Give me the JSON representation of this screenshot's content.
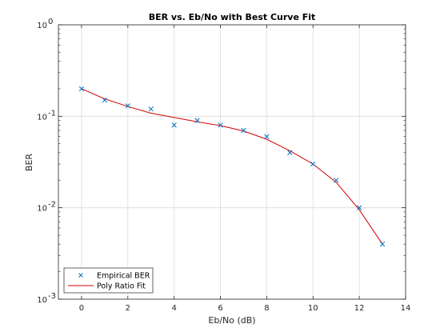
{
  "chart_data": {
    "type": "line",
    "title": "BER vs. Eb/No with Best Curve Fit",
    "xlabel": "Eb/No (dB)",
    "ylabel": "BER",
    "xlim": [
      -1,
      14
    ],
    "ylim": [
      0.001,
      1
    ],
    "yscale": "log",
    "grid": true,
    "legend_position": "bottom-left",
    "x_ticks": [
      0,
      2,
      4,
      6,
      8,
      10,
      12,
      14
    ],
    "x_tick_labels": [
      "0",
      "2",
      "4",
      "6",
      "8",
      "10",
      "12",
      "14"
    ],
    "y_ticks": [
      0.001,
      0.01,
      0.1,
      1
    ],
    "y_tick_labels": [
      {
        "base": "10",
        "exp": "-3"
      },
      {
        "base": "10",
        "exp": "-2"
      },
      {
        "base": "10",
        "exp": "-1"
      },
      {
        "base": "10",
        "exp": "0"
      }
    ],
    "series": [
      {
        "name": "Empirical BER",
        "style": "marker-x",
        "color": "#0072BD",
        "x": [
          0,
          1,
          2,
          3,
          4,
          5,
          6,
          7,
          8,
          9,
          10,
          11,
          12,
          13
        ],
        "y": [
          0.2,
          0.15,
          0.13,
          0.12,
          0.08,
          0.09,
          0.08,
          0.07,
          0.06,
          0.04,
          0.03,
          0.02,
          0.01,
          0.004
        ]
      },
      {
        "name": "Poly Ratio Fit",
        "style": "line",
        "color": "#D40000",
        "x": [
          0,
          1,
          2,
          3,
          4,
          5,
          6,
          7,
          8,
          9,
          10,
          11,
          12,
          13
        ],
        "y": [
          0.2,
          0.155,
          0.128,
          0.108,
          0.097,
          0.087,
          0.079,
          0.069,
          0.056,
          0.042,
          0.03,
          0.019,
          0.0095,
          0.004
        ]
      }
    ]
  }
}
